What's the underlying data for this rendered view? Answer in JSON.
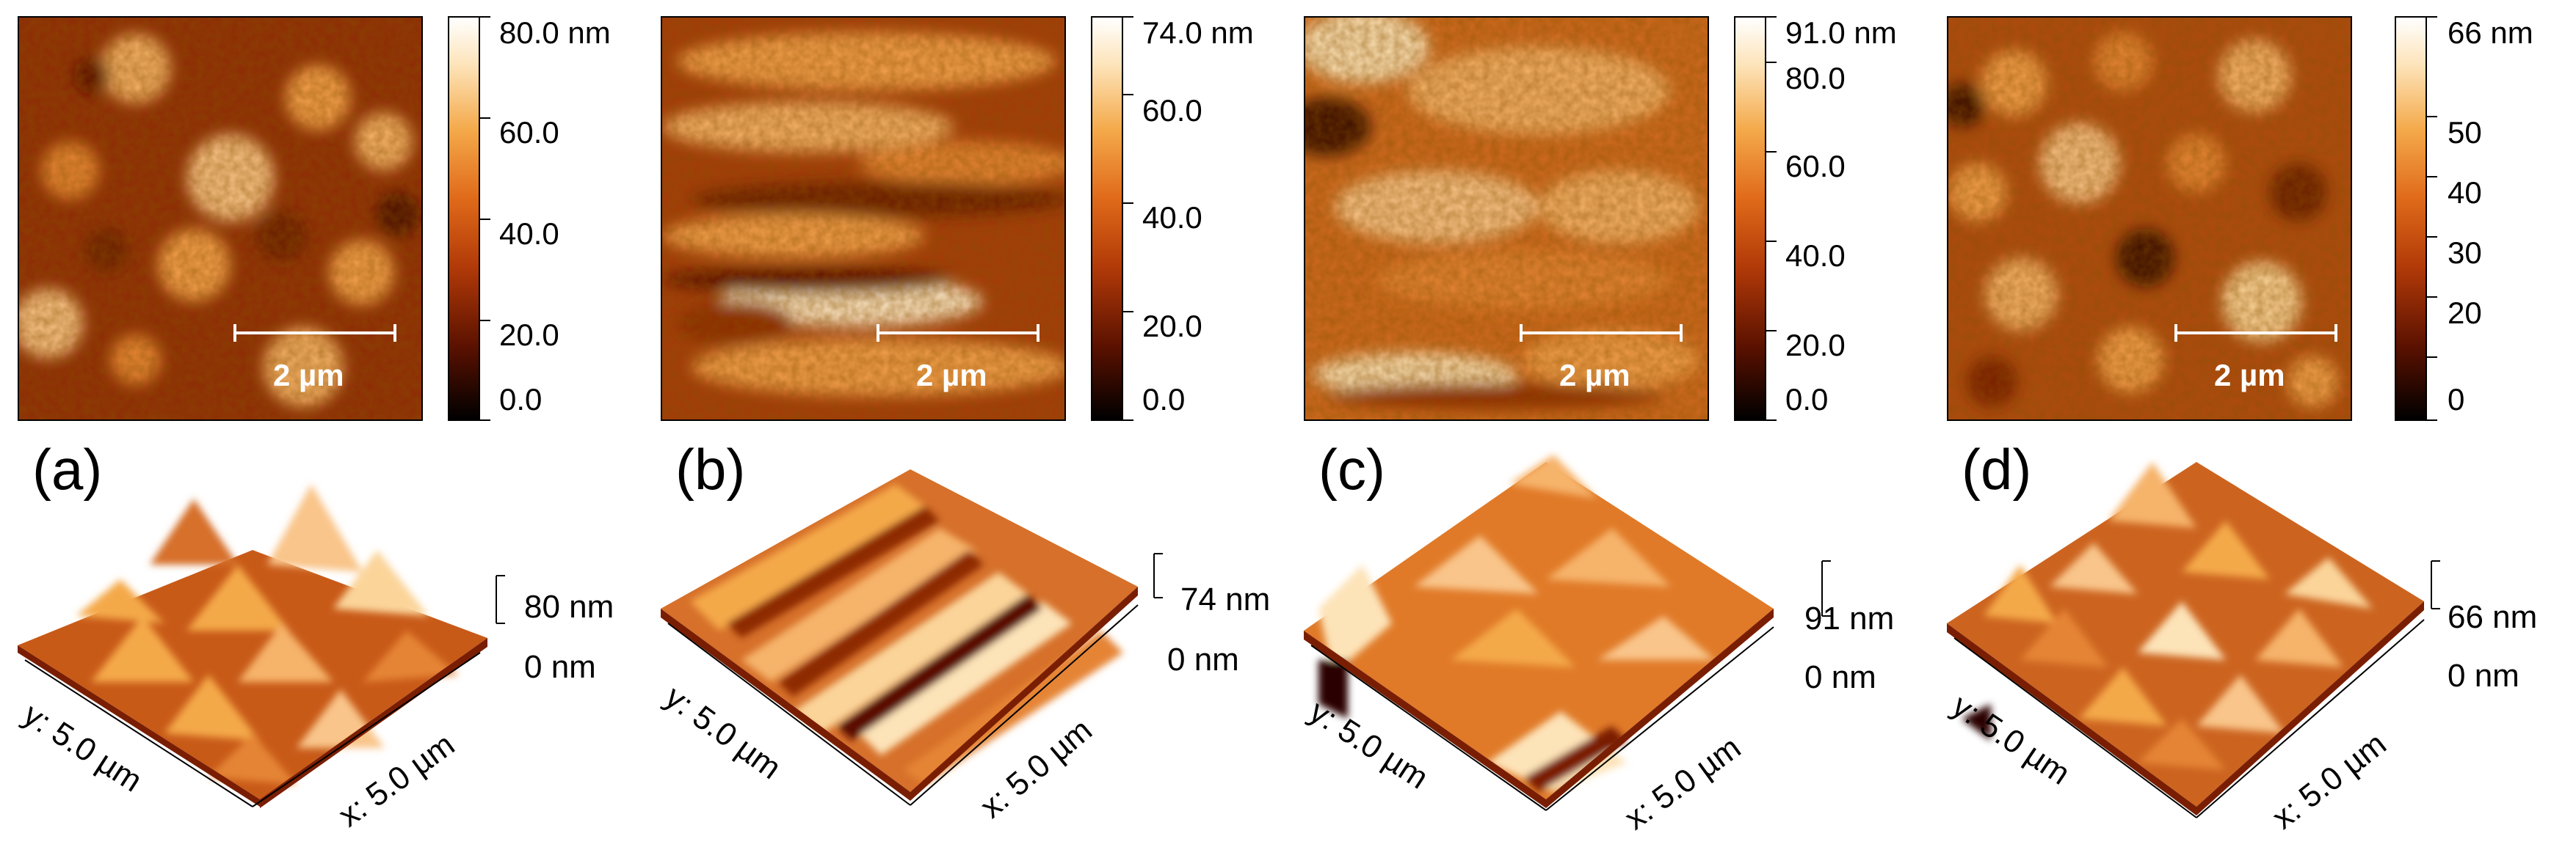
{
  "colormap": [
    "#000000",
    "#5a1100",
    "#b23a08",
    "#e06a1a",
    "#f4a94a",
    "#fde3b8",
    "#ffffff"
  ],
  "panels": [
    {
      "label": "(a)",
      "scalebar": "2 µm",
      "colorbar_max": "80.0 nm",
      "colorbar_ticks": [
        "60.0",
        "40.0",
        "20.0",
        "0.0"
      ],
      "height_top": "80 nm",
      "height_bottom": "0 nm",
      "axis_y": "y: 5.0 µm",
      "axis_x": "x: 5.0 µm"
    },
    {
      "label": "(b)",
      "scalebar": "2 µm",
      "colorbar_max": "74.0 nm",
      "colorbar_ticks": [
        "60.0",
        "40.0",
        "20.0",
        "0.0"
      ],
      "height_top": "74 nm",
      "height_bottom": "0 nm",
      "axis_y": "y: 5.0 µm",
      "axis_x": "x: 5.0 µm"
    },
    {
      "label": "(c)",
      "scalebar": "2 µm",
      "colorbar_max": "91.0 nm",
      "colorbar_ticks": [
        "80.0",
        "60.0",
        "40.0",
        "20.0",
        "0.0"
      ],
      "height_top": "91 nm",
      "height_bottom": "0 nm",
      "axis_y": "y: 5.0 µm",
      "axis_x": "x: 5.0 µm"
    },
    {
      "label": "(d)",
      "scalebar": "2 µm",
      "colorbar_max": "66 nm",
      "colorbar_ticks": [
        "50",
        "40",
        "30",
        "20",
        "0"
      ],
      "height_top": "66 nm",
      "height_bottom": "0 nm",
      "axis_y": "y: 5.0 µm",
      "axis_x": "x: 5.0 µm"
    }
  ]
}
